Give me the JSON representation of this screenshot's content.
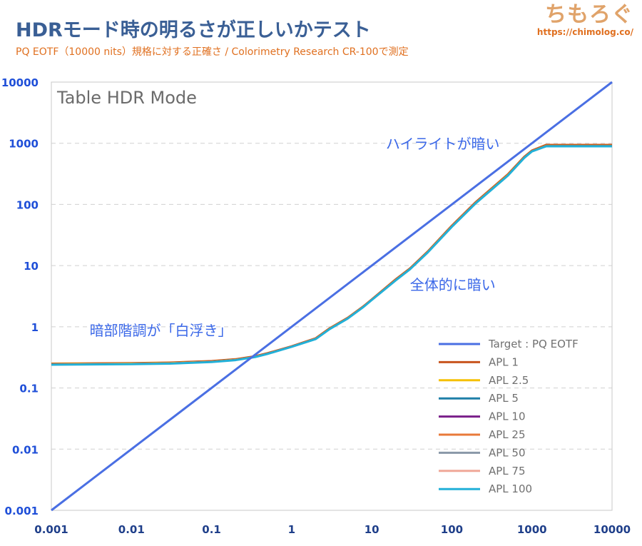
{
  "header": {
    "title": "HDRモード時の明るさが正しいかテスト",
    "subtitle": "PQ EOTF（10000 nits）規格に対する正確さ / Colorimetry Research CR-100で測定"
  },
  "brand": {
    "name": "ちもろぐ",
    "url": "https://chimolog.co/"
  },
  "chart_data": {
    "type": "line",
    "title": "Table HDR Mode",
    "xscale": "log",
    "yscale": "log",
    "xlim": [
      0.001,
      10000
    ],
    "ylim": [
      0.001,
      10000
    ],
    "x_ticks": [
      "0.001",
      "0.01",
      "0.1",
      "1",
      "10",
      "100",
      "1000",
      "10000"
    ],
    "y_ticks": [
      "0.001",
      "0.01",
      "0.1",
      "1",
      "10",
      "100",
      "1000",
      "10000"
    ],
    "grid": "horizontal dashed",
    "legend_position": "bottom-right",
    "annotations": [
      {
        "text": "ハイライトが暗い",
        "x": 15,
        "y": 1000
      },
      {
        "text": "全体的に暗い",
        "x": 30,
        "y": 5
      },
      {
        "text": "暗部階調が「白浮き」",
        "x": 0.003,
        "y": 0.9
      }
    ],
    "series": [
      {
        "name": "Target : PQ EOTF",
        "color": "#4a6fe3",
        "width": 3,
        "x": [
          0.001,
          10000
        ],
        "y": [
          0.001,
          10000
        ]
      },
      {
        "name": "APL 1",
        "color": "#c8541e",
        "width": 3,
        "x": [
          0.001,
          0.01,
          0.03,
          0.1,
          0.2,
          0.35,
          0.5,
          0.7,
          1,
          2,
          3,
          5,
          8,
          10,
          20,
          30,
          50,
          100,
          200,
          500,
          800,
          1000,
          1500,
          10000
        ],
        "y": [
          0.25,
          0.255,
          0.26,
          0.275,
          0.295,
          0.33,
          0.37,
          0.42,
          0.48,
          0.65,
          0.95,
          1.4,
          2.2,
          2.8,
          6,
          9,
          17,
          45,
          110,
          310,
          600,
          760,
          940,
          940
        ]
      },
      {
        "name": "APL 2.5",
        "color": "#f5c000",
        "width": 2,
        "x": [
          0.001,
          0.01,
          0.03,
          0.1,
          0.2,
          0.35,
          0.5,
          0.7,
          1,
          2,
          3,
          5,
          8,
          10,
          20,
          30,
          50,
          100,
          200,
          500,
          800,
          1000,
          1500,
          10000
        ],
        "y": [
          0.248,
          0.253,
          0.258,
          0.272,
          0.292,
          0.327,
          0.367,
          0.417,
          0.477,
          0.645,
          0.94,
          1.39,
          2.18,
          2.78,
          5.9,
          8.9,
          16.8,
          44.5,
          108,
          305,
          590,
          750,
          920,
          920
        ]
      },
      {
        "name": "APL 5",
        "color": "#1f7fa8",
        "width": 2,
        "x": [
          0.001,
          0.01,
          0.03,
          0.1,
          0.2,
          0.35,
          0.5,
          0.7,
          1,
          2,
          3,
          5,
          8,
          10,
          20,
          30,
          50,
          100,
          200,
          500,
          800,
          1000,
          1500,
          10000
        ],
        "y": [
          0.245,
          0.25,
          0.255,
          0.27,
          0.29,
          0.325,
          0.365,
          0.415,
          0.475,
          0.64,
          0.93,
          1.38,
          2.16,
          2.76,
          5.85,
          8.8,
          16.6,
          44,
          107,
          300,
          585,
          745,
          910,
          910
        ]
      },
      {
        "name": "APL 10",
        "color": "#7a1f8a",
        "width": 2,
        "x": [
          0.001,
          0.01,
          0.03,
          0.1,
          0.2,
          0.35,
          0.5,
          0.7,
          1,
          2,
          3,
          5,
          8,
          10,
          20,
          30,
          50,
          100,
          200,
          500,
          800,
          1000,
          1500,
          10000
        ],
        "y": [
          0.245,
          0.25,
          0.255,
          0.27,
          0.29,
          0.325,
          0.365,
          0.415,
          0.475,
          0.64,
          0.93,
          1.38,
          2.16,
          2.76,
          5.85,
          8.8,
          16.6,
          44,
          107,
          300,
          585,
          745,
          905,
          905
        ]
      },
      {
        "name": "APL 25",
        "color": "#e87a3a",
        "width": 2,
        "x": [
          0.001,
          0.01,
          0.03,
          0.1,
          0.2,
          0.35,
          0.5,
          0.7,
          1,
          2,
          3,
          5,
          8,
          10,
          20,
          30,
          50,
          100,
          200,
          500,
          800,
          1000,
          1500,
          10000
        ],
        "y": [
          0.245,
          0.25,
          0.255,
          0.27,
          0.29,
          0.325,
          0.365,
          0.415,
          0.475,
          0.64,
          0.93,
          1.38,
          2.16,
          2.76,
          5.85,
          8.8,
          16.6,
          44,
          107,
          300,
          585,
          745,
          900,
          900
        ]
      },
      {
        "name": "APL 50",
        "color": "#8a98a8",
        "width": 2,
        "x": [
          0.001,
          0.01,
          0.03,
          0.1,
          0.2,
          0.35,
          0.5,
          0.7,
          1,
          2,
          3,
          5,
          8,
          10,
          20,
          30,
          50,
          100,
          200,
          500,
          800,
          1000,
          1500,
          10000
        ],
        "y": [
          0.243,
          0.248,
          0.253,
          0.268,
          0.288,
          0.323,
          0.363,
          0.413,
          0.473,
          0.638,
          0.925,
          1.37,
          2.15,
          2.75,
          5.8,
          8.75,
          16.5,
          43.5,
          106,
          298,
          580,
          740,
          895,
          895
        ]
      },
      {
        "name": "APL 75",
        "color": "#f0a898",
        "width": 2,
        "x": [
          0.001,
          0.01,
          0.03,
          0.1,
          0.2,
          0.35,
          0.5,
          0.7,
          1,
          2,
          3,
          5,
          8,
          10,
          20,
          30,
          50,
          100,
          200,
          500,
          800,
          1000,
          1500,
          10000
        ],
        "y": [
          0.243,
          0.248,
          0.253,
          0.268,
          0.288,
          0.323,
          0.363,
          0.413,
          0.473,
          0.638,
          0.925,
          1.37,
          2.15,
          2.75,
          5.8,
          8.75,
          16.5,
          43.5,
          106,
          298,
          580,
          740,
          892,
          892
        ]
      },
      {
        "name": "APL 100",
        "color": "#22b0d8",
        "width": 3,
        "x": [
          0.001,
          0.01,
          0.03,
          0.1,
          0.2,
          0.35,
          0.5,
          0.7,
          1,
          2,
          3,
          5,
          8,
          10,
          20,
          30,
          50,
          100,
          200,
          500,
          800,
          1000,
          1500,
          10000
        ],
        "y": [
          0.24,
          0.245,
          0.25,
          0.265,
          0.285,
          0.32,
          0.36,
          0.41,
          0.47,
          0.63,
          0.92,
          1.36,
          2.14,
          2.74,
          5.75,
          8.7,
          16.4,
          43,
          105,
          295,
          575,
          735,
          890,
          890
        ]
      }
    ]
  }
}
